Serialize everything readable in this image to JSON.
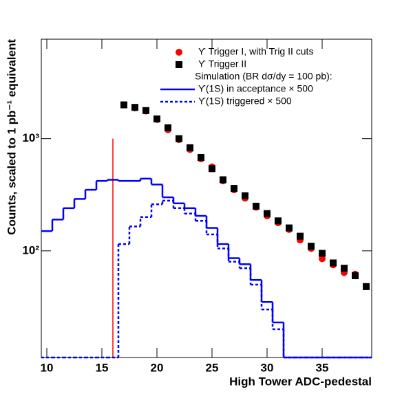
{
  "chart_data": {
    "type": "mixed",
    "xlabel": "High Tower ADC-pedestal",
    "ylabel": "Counts, scaled to 1 pb⁻¹ equivalent",
    "xlim": [
      9.5,
      39.5
    ],
    "ylim": [
      11.2,
      7700
    ],
    "log_y": true,
    "xticks": [
      10,
      15,
      20,
      25,
      30,
      35
    ],
    "yticks": [
      {
        "value": 100,
        "label": "10²"
      },
      {
        "value": 1000,
        "label": "10³"
      }
    ],
    "legend_title": "Simulation (BR dσ/dy = 100 pb):",
    "series": [
      {
        "name": "ϒ Trigger I, with Trig II cuts",
        "type": "scatter",
        "marker": "circle",
        "color": "#ff0000",
        "x": [
          17,
          18,
          19,
          20,
          21,
          22,
          23,
          24,
          25,
          26,
          27,
          28,
          29,
          30,
          31,
          32,
          33,
          34,
          35,
          36,
          37,
          38,
          39
        ],
        "values": [
          2000,
          1880,
          1760,
          1480,
          1200,
          980,
          800,
          660,
          560,
          420,
          350,
          295,
          245,
          205,
          178,
          155,
          125,
          105,
          85,
          75,
          64,
          62,
          48
        ]
      },
      {
        "name": "ϒ Trigger II",
        "type": "scatter",
        "marker": "square",
        "color": "#000000",
        "x": [
          17,
          18,
          19,
          20,
          21,
          22,
          23,
          24,
          25,
          26,
          27,
          28,
          29,
          30,
          31,
          32,
          33,
          34,
          35,
          36,
          37,
          38,
          39
        ],
        "values": [
          2000,
          1900,
          1780,
          1500,
          1250,
          1000,
          830,
          680,
          540,
          430,
          360,
          310,
          250,
          215,
          185,
          160,
          135,
          110,
          95,
          78,
          70,
          60,
          48
        ]
      },
      {
        "name": "ϒ(1S) in acceptance × 500",
        "type": "step",
        "dash": false,
        "color": "#0000ff",
        "bins": [
          9.5,
          10.5,
          11.5,
          12.5,
          13.5,
          14.5,
          15.5,
          16.5,
          17.5,
          18.5,
          19.5,
          20.5,
          21.5,
          22.5,
          23.5,
          24.5,
          25.5,
          26.5,
          27.5,
          28.5,
          29.5,
          30.5,
          31.5,
          32.5,
          33.5,
          34.5,
          35.5,
          36.5,
          37.5,
          38.5,
          39.5
        ],
        "values": [
          150,
          190,
          240,
          290,
          350,
          420,
          430,
          420,
          420,
          440,
          390,
          300,
          265,
          240,
          205,
          160,
          115,
          86,
          76,
          55,
          35,
          23,
          0,
          0,
          0,
          0,
          0,
          0,
          0,
          0
        ]
      },
      {
        "name": "ϒ(1S) triggered × 500",
        "type": "step",
        "dash": true,
        "color": "#0000ff",
        "bins": [
          9.5,
          10.5,
          11.5,
          12.5,
          13.5,
          14.5,
          15.5,
          16.5,
          17.5,
          18.5,
          19.5,
          20.5,
          21.5,
          22.5,
          23.5,
          24.5,
          25.5,
          26.5,
          27.5,
          28.5,
          29.5,
          30.5,
          31.5,
          32.5,
          33.5,
          34.5,
          35.5,
          36.5,
          37.5,
          38.5,
          39.5
        ],
        "values": [
          0,
          0,
          0,
          0,
          0,
          0,
          0,
          115,
          165,
          200,
          260,
          280,
          240,
          215,
          185,
          140,
          105,
          80,
          70,
          50,
          30,
          20,
          0,
          0,
          0,
          0,
          0,
          0,
          0,
          0
        ]
      }
    ],
    "cut_line": {
      "x": 16,
      "y": 1000,
      "color": "#ff0000"
    }
  }
}
